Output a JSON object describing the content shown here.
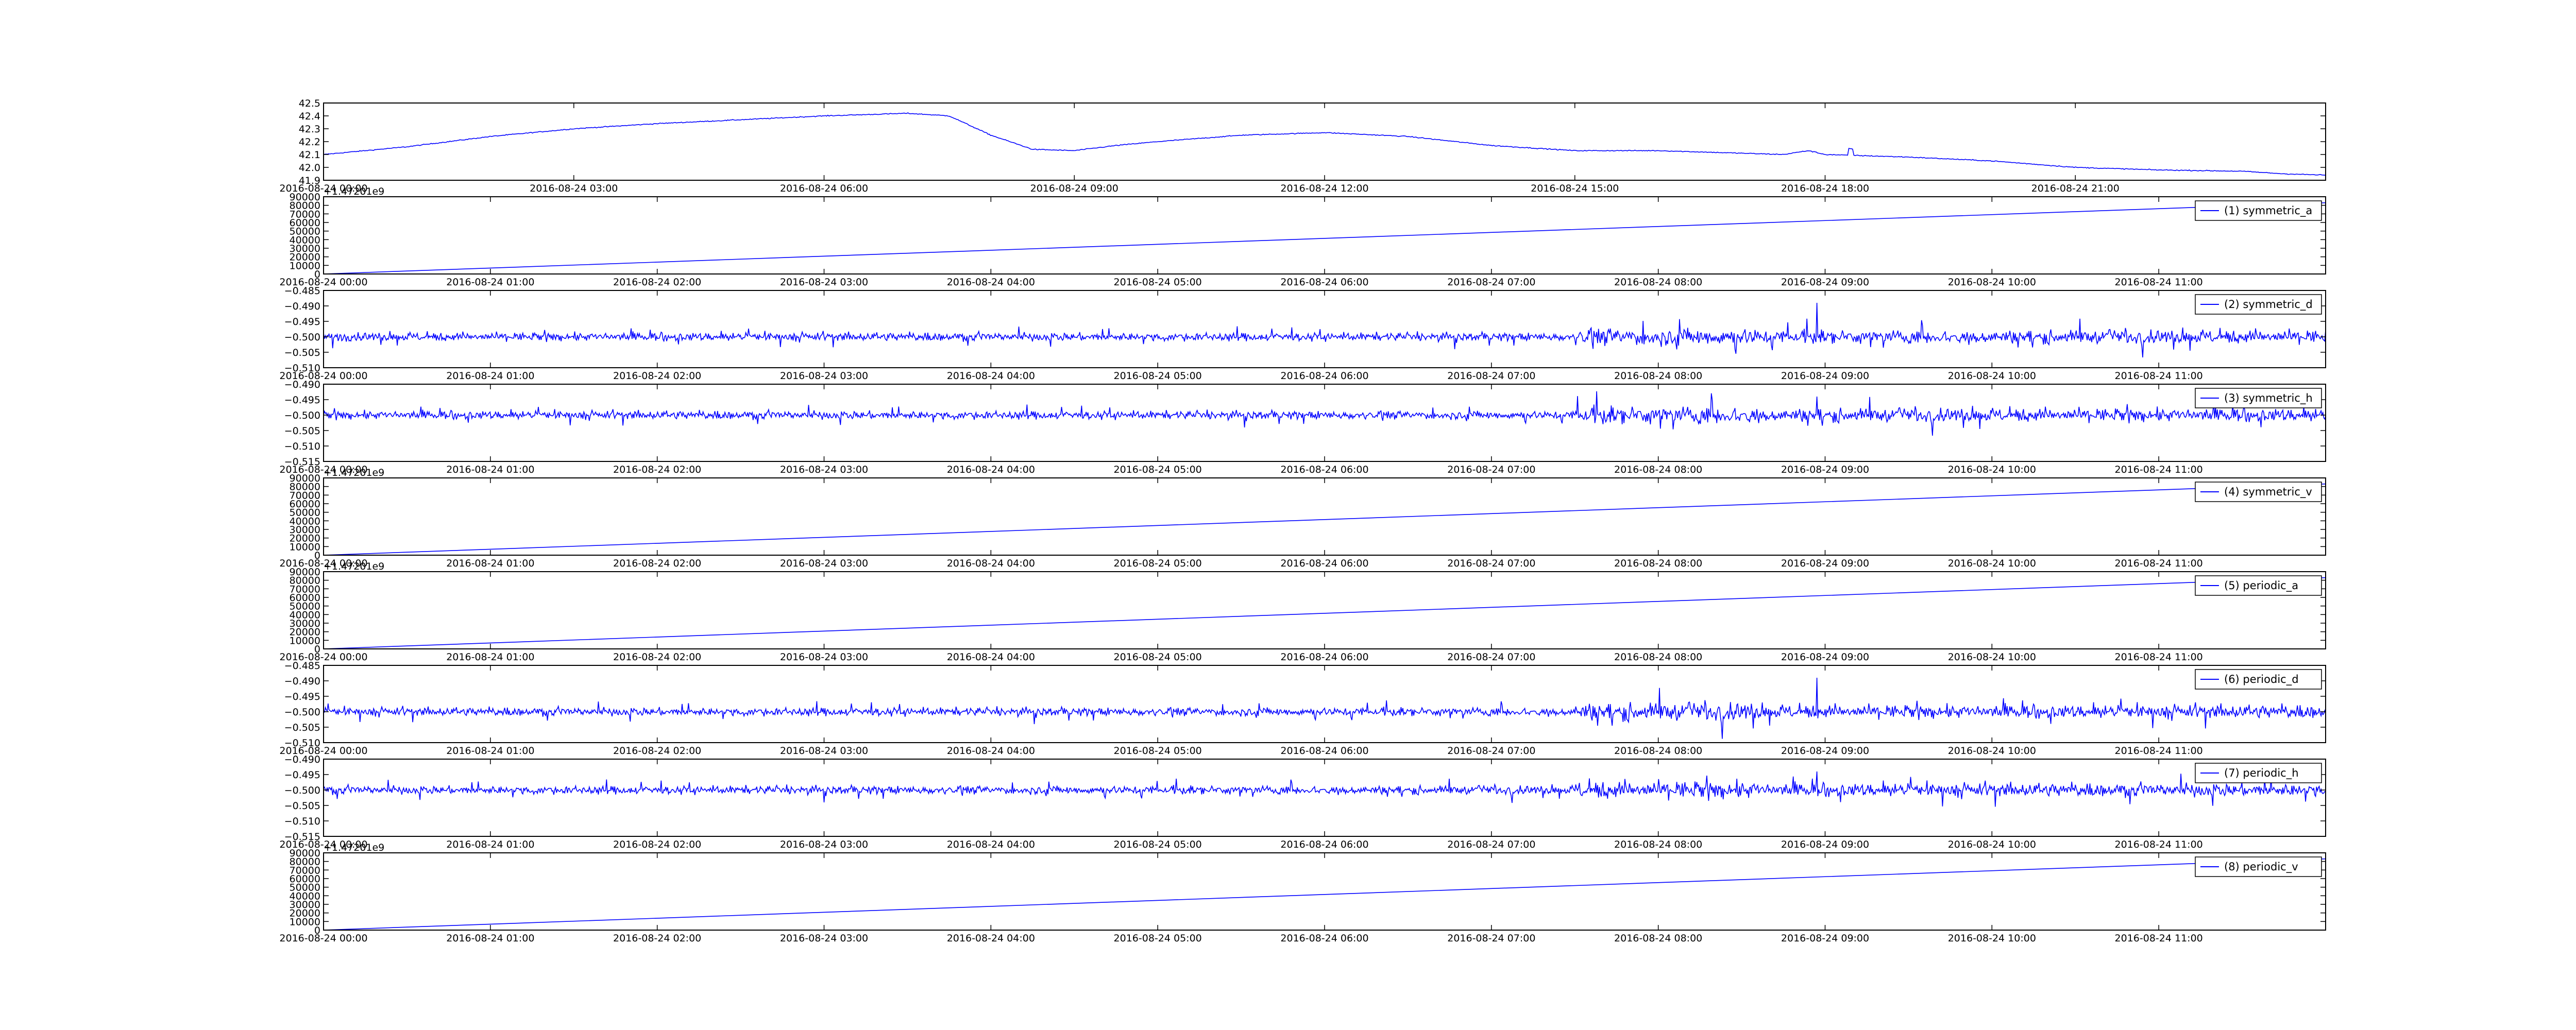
{
  "figure": {
    "line_color": "#0000ff",
    "background": "#ffffff"
  },
  "chart_data": [
    {
      "type": "line",
      "name": "",
      "legend": "",
      "x_ticks": [
        "2016-08-24 00:00",
        "2016-08-24 03:00",
        "2016-08-24 06:00",
        "2016-08-24 09:00",
        "2016-08-24 12:00",
        "2016-08-24 15:00",
        "2016-08-24 18:00",
        "2016-08-24 21:00"
      ],
      "y_ticks": [
        "41.9",
        "42.0",
        "42.1",
        "42.2",
        "42.3",
        "42.4",
        "42.5"
      ],
      "ylim": [
        41.9,
        42.5
      ],
      "offset_text": "",
      "signal": "smooth",
      "x_hours": [
        0,
        1,
        2,
        3,
        4,
        5,
        6,
        7,
        7.5,
        8,
        8.5,
        9,
        9.5,
        10,
        11,
        12,
        13,
        14,
        15,
        16,
        17,
        17.5,
        17.8,
        18,
        18.5,
        19,
        20,
        21,
        22,
        23,
        23.5,
        24
      ],
      "values": [
        42.1,
        42.16,
        42.24,
        42.3,
        42.34,
        42.37,
        42.4,
        42.42,
        42.4,
        42.25,
        42.14,
        42.13,
        42.17,
        42.2,
        42.25,
        42.27,
        42.24,
        42.17,
        42.13,
        42.13,
        42.11,
        42.1,
        42.13,
        42.1,
        42.09,
        42.08,
        42.05,
        42.0,
        41.98,
        41.97,
        41.95,
        41.94
      ],
      "x_range_hours": [
        0,
        24
      ]
    },
    {
      "type": "line",
      "name": "symmetric_a",
      "legend": "(1) symmetric_a",
      "x_ticks": [
        "2016-08-24 00:00",
        "2016-08-24 01:00",
        "2016-08-24 02:00",
        "2016-08-24 03:00",
        "2016-08-24 04:00",
        "2016-08-24 05:00",
        "2016-08-24 06:00",
        "2016-08-24 07:00",
        "2016-08-24 08:00",
        "2016-08-24 09:00",
        "2016-08-24 10:00",
        "2016-08-24 11:00"
      ],
      "y_ticks": [
        "0",
        "10000",
        "20000",
        "30000",
        "40000",
        "50000",
        "60000",
        "70000",
        "80000",
        "90000"
      ],
      "ylim": [
        0,
        90000
      ],
      "offset_text": "+1.47201e9",
      "signal": "linear",
      "x_hours": [
        0,
        12
      ],
      "values": [
        0,
        83000
      ],
      "x_range_hours": [
        0,
        12
      ]
    },
    {
      "type": "line",
      "name": "symmetric_d",
      "legend": "(2) symmetric_d",
      "x_ticks": [
        "2016-08-24 00:00",
        "2016-08-24 01:00",
        "2016-08-24 02:00",
        "2016-08-24 03:00",
        "2016-08-24 04:00",
        "2016-08-24 05:00",
        "2016-08-24 06:00",
        "2016-08-24 07:00",
        "2016-08-24 08:00",
        "2016-08-24 09:00",
        "2016-08-24 10:00",
        "2016-08-24 11:00"
      ],
      "y_ticks": [
        "−0.510",
        "−0.505",
        "−0.500",
        "−0.495",
        "−0.490",
        "−0.485"
      ],
      "ylim": [
        -0.51,
        -0.485
      ],
      "offset_text": "",
      "signal": "noise",
      "baseline": -0.5,
      "amplitude": 0.0035,
      "spike_hour": 8.95,
      "spike_range": [
        -0.507,
        -0.489
      ],
      "x_range_hours": [
        0,
        12
      ]
    },
    {
      "type": "line",
      "name": "symmetric_h",
      "legend": "(3) symmetric_h",
      "x_ticks": [
        "2016-08-24 00:00",
        "2016-08-24 01:00",
        "2016-08-24 02:00",
        "2016-08-24 03:00",
        "2016-08-24 04:00",
        "2016-08-24 05:00",
        "2016-08-24 06:00",
        "2016-08-24 07:00",
        "2016-08-24 08:00",
        "2016-08-24 09:00",
        "2016-08-24 10:00",
        "2016-08-24 11:00"
      ],
      "y_ticks": [
        "−0.515",
        "−0.510",
        "−0.505",
        "−0.500",
        "−0.495",
        "−0.490"
      ],
      "ylim": [
        -0.515,
        -0.49
      ],
      "offset_text": "",
      "signal": "noise",
      "baseline": -0.5,
      "amplitude": 0.0035,
      "spike_hour": 8.95,
      "spike_range": [
        -0.512,
        -0.494
      ],
      "x_range_hours": [
        0,
        12
      ]
    },
    {
      "type": "line",
      "name": "symmetric_v",
      "legend": "(4) symmetric_v",
      "x_ticks": [
        "2016-08-24 00:00",
        "2016-08-24 01:00",
        "2016-08-24 02:00",
        "2016-08-24 03:00",
        "2016-08-24 04:00",
        "2016-08-24 05:00",
        "2016-08-24 06:00",
        "2016-08-24 07:00",
        "2016-08-24 08:00",
        "2016-08-24 09:00",
        "2016-08-24 10:00",
        "2016-08-24 11:00"
      ],
      "y_ticks": [
        "0",
        "10000",
        "20000",
        "30000",
        "40000",
        "50000",
        "60000",
        "70000",
        "80000",
        "90000"
      ],
      "ylim": [
        0,
        90000
      ],
      "offset_text": "+1.47201e9",
      "signal": "linear",
      "x_hours": [
        0,
        12
      ],
      "values": [
        0,
        83000
      ],
      "x_range_hours": [
        0,
        12
      ]
    },
    {
      "type": "line",
      "name": "periodic_a",
      "legend": "(5) periodic_a",
      "x_ticks": [
        "2016-08-24 00:00",
        "2016-08-24 01:00",
        "2016-08-24 02:00",
        "2016-08-24 03:00",
        "2016-08-24 04:00",
        "2016-08-24 05:00",
        "2016-08-24 06:00",
        "2016-08-24 07:00",
        "2016-08-24 08:00",
        "2016-08-24 09:00",
        "2016-08-24 10:00",
        "2016-08-24 11:00"
      ],
      "y_ticks": [
        "0",
        "10000",
        "20000",
        "30000",
        "40000",
        "50000",
        "60000",
        "70000",
        "80000",
        "90000"
      ],
      "ylim": [
        0,
        90000
      ],
      "offset_text": "+1.47201e9",
      "signal": "linear",
      "x_hours": [
        0,
        12
      ],
      "values": [
        0,
        83000
      ],
      "x_range_hours": [
        0,
        12
      ]
    },
    {
      "type": "line",
      "name": "periodic_d",
      "legend": "(6) periodic_d",
      "x_ticks": [
        "2016-08-24 00:00",
        "2016-08-24 01:00",
        "2016-08-24 02:00",
        "2016-08-24 03:00",
        "2016-08-24 04:00",
        "2016-08-24 05:00",
        "2016-08-24 06:00",
        "2016-08-24 07:00",
        "2016-08-24 08:00",
        "2016-08-24 09:00",
        "2016-08-24 10:00",
        "2016-08-24 11:00"
      ],
      "y_ticks": [
        "−0.510",
        "−0.505",
        "−0.500",
        "−0.495",
        "−0.490",
        "−0.485"
      ],
      "ylim": [
        -0.51,
        -0.485
      ],
      "offset_text": "",
      "signal": "noise",
      "baseline": -0.5,
      "amplitude": 0.0035,
      "spike_hour": 8.95,
      "spike_range": [
        -0.507,
        -0.489
      ],
      "x_range_hours": [
        0,
        12
      ]
    },
    {
      "type": "line",
      "name": "periodic_h",
      "legend": "(7) periodic_h",
      "x_ticks": [
        "2016-08-24 00:00",
        "2016-08-24 01:00",
        "2016-08-24 02:00",
        "2016-08-24 03:00",
        "2016-08-24 04:00",
        "2016-08-24 05:00",
        "2016-08-24 06:00",
        "2016-08-24 07:00",
        "2016-08-24 08:00",
        "2016-08-24 09:00",
        "2016-08-24 10:00",
        "2016-08-24 11:00"
      ],
      "y_ticks": [
        "−0.515",
        "−0.510",
        "−0.505",
        "−0.500",
        "−0.495",
        "−0.490"
      ],
      "ylim": [
        -0.515,
        -0.49
      ],
      "offset_text": "",
      "signal": "noise",
      "baseline": -0.5,
      "amplitude": 0.0035,
      "spike_hour": 8.95,
      "spike_range": [
        -0.512,
        -0.494
      ],
      "x_range_hours": [
        0,
        12
      ]
    },
    {
      "type": "line",
      "name": "periodic_v",
      "legend": "(8) periodic_v",
      "x_ticks": [
        "2016-08-24 00:00",
        "2016-08-24 01:00",
        "2016-08-24 02:00",
        "2016-08-24 03:00",
        "2016-08-24 04:00",
        "2016-08-24 05:00",
        "2016-08-24 06:00",
        "2016-08-24 07:00",
        "2016-08-24 08:00",
        "2016-08-24 09:00",
        "2016-08-24 10:00",
        "2016-08-24 11:00"
      ],
      "y_ticks": [
        "0",
        "10000",
        "20000",
        "30000",
        "40000",
        "50000",
        "60000",
        "70000",
        "80000",
        "90000"
      ],
      "ylim": [
        0,
        90000
      ],
      "offset_text": "+1.47201e9",
      "signal": "linear",
      "x_hours": [
        0,
        12
      ],
      "values": [
        0,
        83000
      ],
      "x_range_hours": [
        0,
        12
      ]
    }
  ]
}
